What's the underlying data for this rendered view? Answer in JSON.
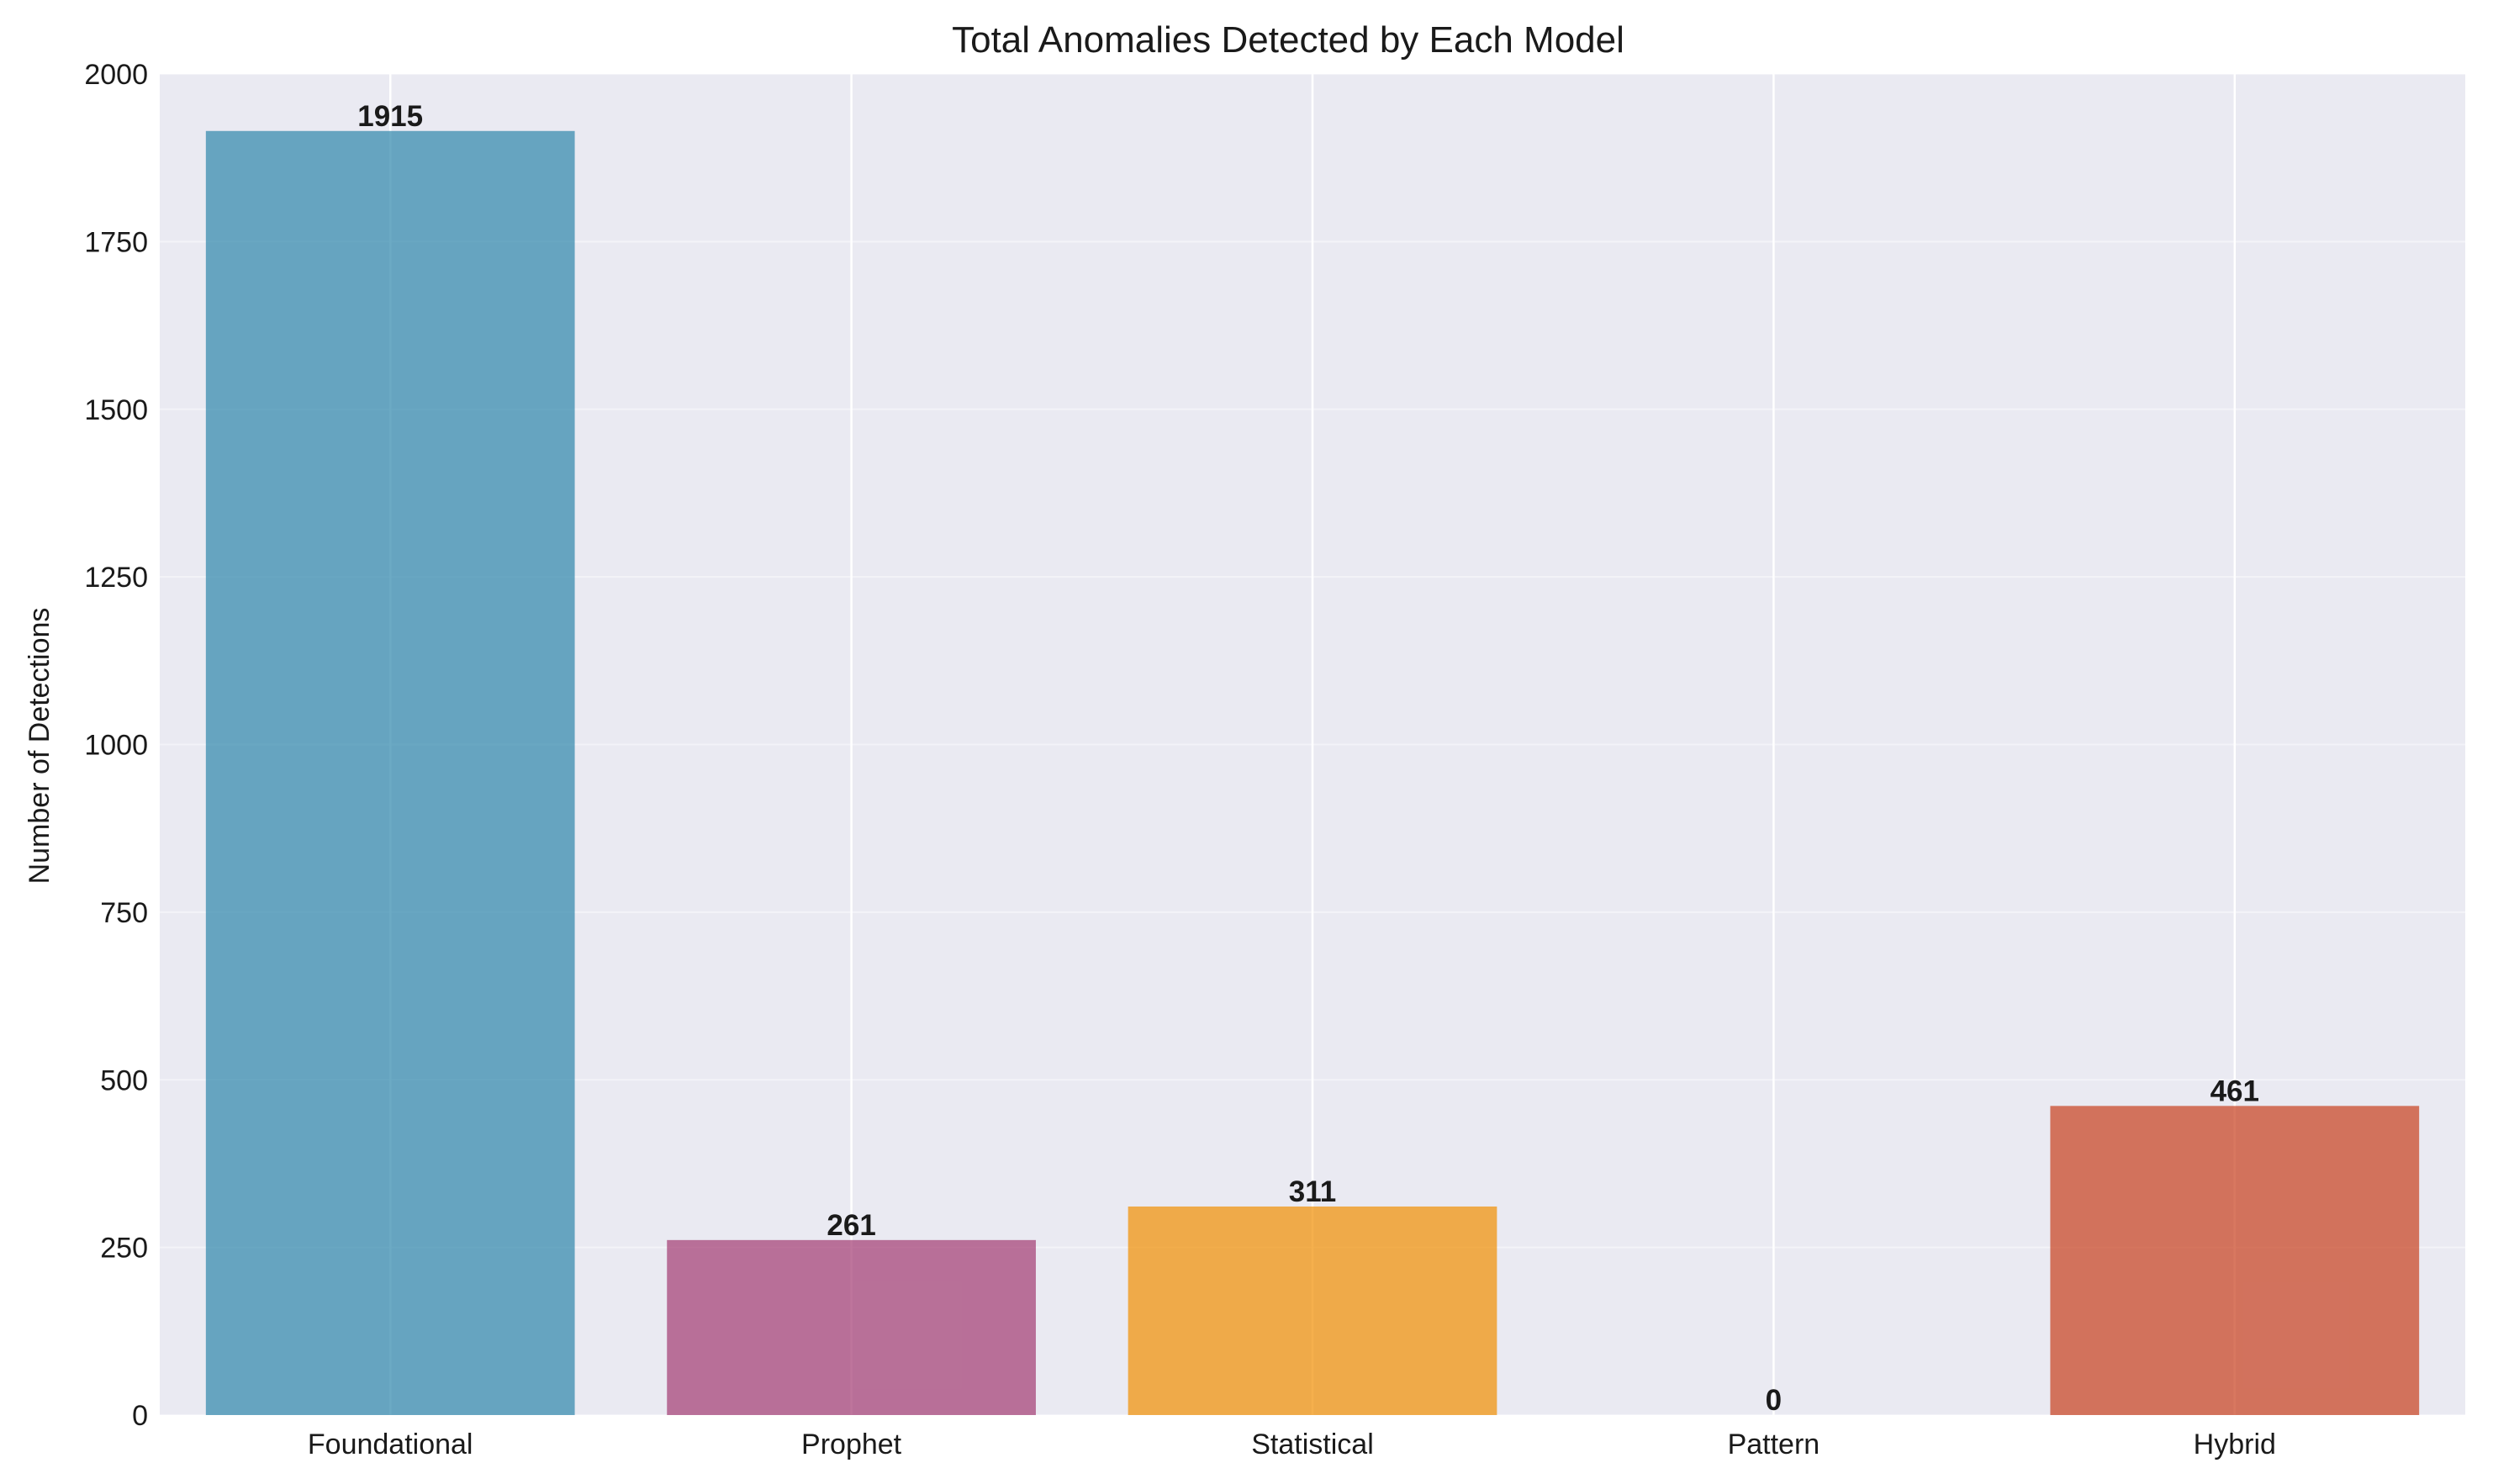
{
  "chart_data": {
    "type": "bar",
    "title": "Total Anomalies Detected by Each Model",
    "xlabel": "",
    "ylabel": "Number of Detections",
    "categories": [
      "Foundational",
      "Prophet",
      "Statistical",
      "Pattern",
      "Hybrid"
    ],
    "values": [
      1915,
      261,
      311,
      0,
      461
    ],
    "data_labels": [
      "1915",
      "261",
      "311",
      "0",
      "461"
    ],
    "ylim": [
      0,
      2000
    ],
    "yticks": [
      0,
      250,
      500,
      750,
      1000,
      1250,
      1500,
      1750,
      2000
    ],
    "ytick_labels": [
      "0",
      "250",
      "500",
      "750",
      "1000",
      "1250",
      "1500",
      "1750",
      "2000"
    ],
    "grid": true,
    "legend": "none",
    "colors": [
      "#2E86AB",
      "#A23B72",
      "#F18F01",
      "#8C8C8C",
      "#C73E1D"
    ],
    "background_color": "#EAEAF2",
    "grid_color": "#FFFFFF"
  }
}
